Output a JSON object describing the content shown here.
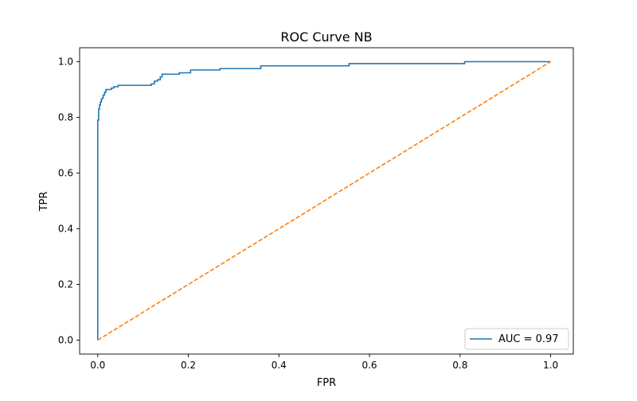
{
  "chart_data": {
    "type": "line",
    "title": "ROC Curve NB",
    "xlabel": "FPR",
    "ylabel": "TPR",
    "xlim": [
      -0.04,
      1.05
    ],
    "ylim": [
      -0.05,
      1.05
    ],
    "xticks": [
      0.0,
      0.2,
      0.4,
      0.6,
      0.8,
      1.0
    ],
    "xtick_labels": [
      "0.0",
      "0.2",
      "0.4",
      "0.6",
      "0.8",
      "1.0"
    ],
    "yticks": [
      0.0,
      0.2,
      0.4,
      0.6,
      0.8,
      1.0
    ],
    "ytick_labels": [
      "0.0",
      "0.2",
      "0.4",
      "0.6",
      "0.8",
      "1.0"
    ],
    "grid": false,
    "legend_position": "lower-right",
    "series": [
      {
        "name": "AUC = 0.97",
        "color": "#1f77b4",
        "style": "solid",
        "step": true,
        "x": [
          0.0,
          0.0,
          0.002,
          0.004,
          0.006,
          0.008,
          0.01,
          0.012,
          0.015,
          0.018,
          0.02,
          0.025,
          0.03,
          0.035,
          0.045,
          0.06,
          0.08,
          0.1,
          0.118,
          0.125,
          0.132,
          0.138,
          0.142,
          0.15,
          0.18,
          0.205,
          0.22,
          0.27,
          0.3,
          0.36,
          0.42,
          0.5,
          0.555,
          0.6,
          0.7,
          0.81,
          0.9,
          1.0
        ],
        "y": [
          0.0,
          0.79,
          0.83,
          0.845,
          0.855,
          0.865,
          0.87,
          0.88,
          0.89,
          0.9,
          0.9,
          0.9,
          0.905,
          0.91,
          0.915,
          0.915,
          0.915,
          0.915,
          0.92,
          0.93,
          0.935,
          0.945,
          0.955,
          0.955,
          0.96,
          0.97,
          0.97,
          0.975,
          0.975,
          0.985,
          0.985,
          0.985,
          0.993,
          0.993,
          0.993,
          1.0,
          1.0,
          1.0
        ]
      },
      {
        "color": "#ff7f0e",
        "style": "dashed",
        "x": [
          0.0,
          1.0
        ],
        "y": [
          0.0,
          1.0
        ]
      }
    ],
    "legend": [
      {
        "label": "AUC = 0.97",
        "color": "#1f77b4"
      }
    ]
  }
}
